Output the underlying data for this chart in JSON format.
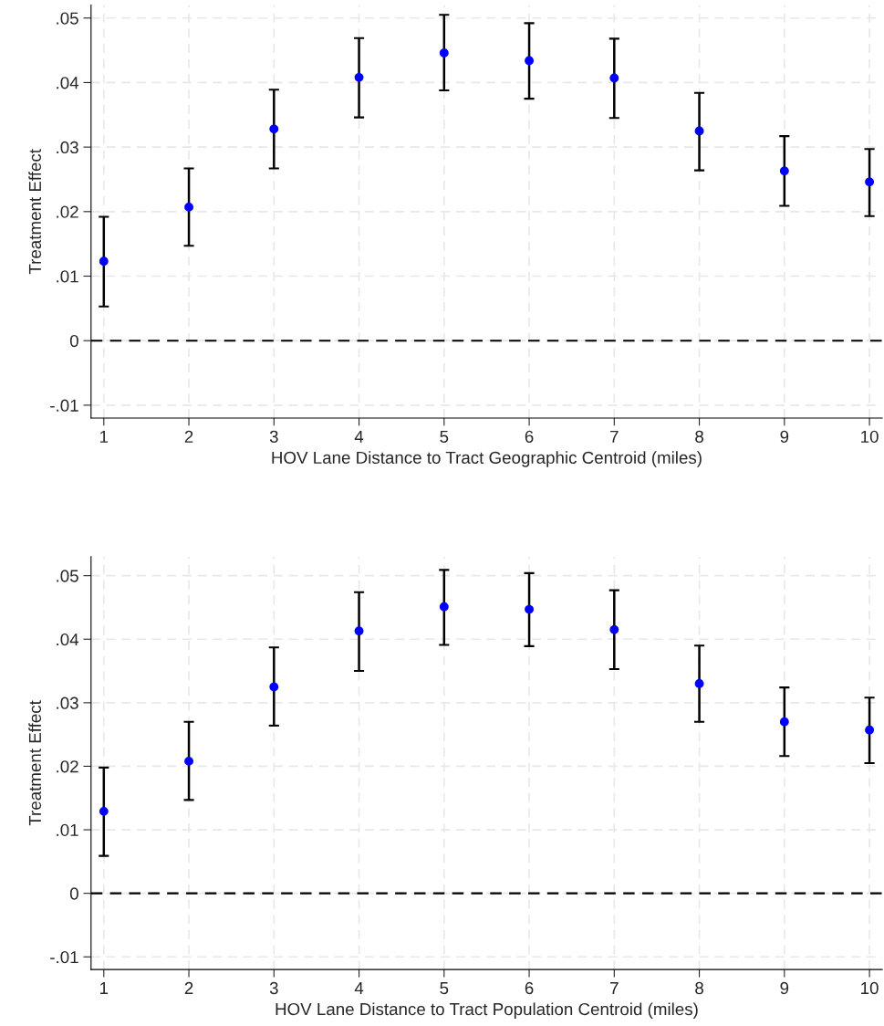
{
  "chart_data": [
    {
      "type": "scatter",
      "xlabel": "HOV Lane Distance to Tract Geographic Centroid (miles)",
      "ylabel": "Treatment Effect",
      "x": [
        1,
        2,
        3,
        4,
        5,
        6,
        7,
        8,
        9,
        10
      ],
      "series": [
        {
          "color": "#0000ff",
          "values": [
            0.0123,
            0.0207,
            0.0328,
            0.0408,
            0.0446,
            0.0434,
            0.0407,
            0.0325,
            0.0263,
            0.0246
          ],
          "errors": [
            [
              0.0053,
              0.0192
            ],
            [
              0.0147,
              0.0267
            ],
            [
              0.0267,
              0.0389
            ],
            [
              0.0346,
              0.0469
            ],
            [
              0.0388,
              0.0505
            ],
            [
              0.0375,
              0.0492
            ],
            [
              0.0345,
              0.0468
            ],
            [
              0.0264,
              0.0384
            ],
            [
              0.0209,
              0.0317
            ],
            [
              0.0193,
              0.0297
            ]
          ]
        }
      ],
      "xlim": [
        0.85,
        10.15
      ],
      "xticks": [
        1,
        2,
        3,
        4,
        5,
        6,
        7,
        8,
        9,
        10
      ],
      "ylim": [
        -0.012,
        0.052
      ],
      "yticks": [
        {
          "value": -0.01,
          "label": "-.01"
        },
        0,
        {
          "value": 0.01,
          "label": ".01"
        },
        {
          "value": 0.02,
          "label": ".02"
        },
        {
          "value": 0.03,
          "label": ".03"
        },
        {
          "value": 0.04,
          "label": ".04"
        },
        {
          "value": 0.05,
          "label": ".05"
        }
      ],
      "ref_lines": [
        {
          "axis": "y",
          "value": 0,
          "color": "#000000",
          "line_style": "dashed"
        }
      ],
      "grid": true,
      "marker": "circle",
      "legend": false
    },
    {
      "type": "scatter",
      "xlabel": "HOV Lane Distance to Tract Population Centroid (miles)",
      "ylabel": "Treatment Effect",
      "x": [
        1,
        2,
        3,
        4,
        5,
        6,
        7,
        8,
        9,
        10
      ],
      "series": [
        {
          "color": "#0000ff",
          "values": [
            0.0129,
            0.0208,
            0.0325,
            0.0413,
            0.0451,
            0.0447,
            0.0415,
            0.033,
            0.027,
            0.0257
          ],
          "errors": [
            [
              0.0059,
              0.0198
            ],
            [
              0.0147,
              0.027
            ],
            [
              0.0264,
              0.0387
            ],
            [
              0.035,
              0.0474
            ],
            [
              0.0391,
              0.0509
            ],
            [
              0.0389,
              0.0504
            ],
            [
              0.0353,
              0.0477
            ],
            [
              0.027,
              0.039
            ],
            [
              0.0216,
              0.0324
            ],
            [
              0.0205,
              0.0308
            ]
          ]
        }
      ],
      "xlim": [
        0.85,
        10.15
      ],
      "xticks": [
        1,
        2,
        3,
        4,
        5,
        6,
        7,
        8,
        9,
        10
      ],
      "ylim": [
        -0.012,
        0.053
      ],
      "yticks": [
        {
          "value": -0.01,
          "label": "-.01"
        },
        0,
        {
          "value": 0.01,
          "label": ".01"
        },
        {
          "value": 0.02,
          "label": ".02"
        },
        {
          "value": 0.03,
          "label": ".03"
        },
        {
          "value": 0.04,
          "label": ".04"
        },
        {
          "value": 0.05,
          "label": ".05"
        }
      ],
      "ref_lines": [
        {
          "axis": "y",
          "value": 0,
          "color": "#000000",
          "line_style": "dashed"
        }
      ],
      "grid": true,
      "marker": "circle",
      "legend": false
    }
  ]
}
